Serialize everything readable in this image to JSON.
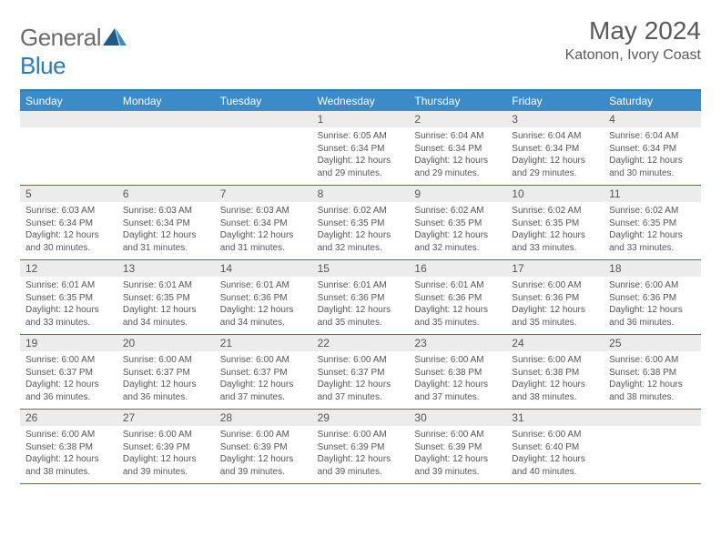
{
  "brand": {
    "part1": "General",
    "part2": "Blue"
  },
  "title": "May 2024",
  "location": "Katonon, Ivory Coast",
  "colors": {
    "header_bg": "#3b8bc8",
    "border": "#2a7ab8",
    "daynum_bg": "#ececec",
    "text": "#555555",
    "page_bg": "#ffffff"
  },
  "typography": {
    "title_fontsize": 28,
    "location_fontsize": 16,
    "weekday_fontsize": 12,
    "daynum_fontsize": 12,
    "body_fontsize": 10
  },
  "layout": {
    "columns": 7,
    "rows": 5,
    "first_weekday_index": 3
  },
  "weekdays": [
    "Sunday",
    "Monday",
    "Tuesday",
    "Wednesday",
    "Thursday",
    "Friday",
    "Saturday"
  ],
  "days": [
    {
      "n": 1,
      "sr": "6:05 AM",
      "ss": "6:34 PM",
      "dl": "12 hours and 29 minutes."
    },
    {
      "n": 2,
      "sr": "6:04 AM",
      "ss": "6:34 PM",
      "dl": "12 hours and 29 minutes."
    },
    {
      "n": 3,
      "sr": "6:04 AM",
      "ss": "6:34 PM",
      "dl": "12 hours and 29 minutes."
    },
    {
      "n": 4,
      "sr": "6:04 AM",
      "ss": "6:34 PM",
      "dl": "12 hours and 30 minutes."
    },
    {
      "n": 5,
      "sr": "6:03 AM",
      "ss": "6:34 PM",
      "dl": "12 hours and 30 minutes."
    },
    {
      "n": 6,
      "sr": "6:03 AM",
      "ss": "6:34 PM",
      "dl": "12 hours and 31 minutes."
    },
    {
      "n": 7,
      "sr": "6:03 AM",
      "ss": "6:34 PM",
      "dl": "12 hours and 31 minutes."
    },
    {
      "n": 8,
      "sr": "6:02 AM",
      "ss": "6:35 PM",
      "dl": "12 hours and 32 minutes."
    },
    {
      "n": 9,
      "sr": "6:02 AM",
      "ss": "6:35 PM",
      "dl": "12 hours and 32 minutes."
    },
    {
      "n": 10,
      "sr": "6:02 AM",
      "ss": "6:35 PM",
      "dl": "12 hours and 33 minutes."
    },
    {
      "n": 11,
      "sr": "6:02 AM",
      "ss": "6:35 PM",
      "dl": "12 hours and 33 minutes."
    },
    {
      "n": 12,
      "sr": "6:01 AM",
      "ss": "6:35 PM",
      "dl": "12 hours and 33 minutes."
    },
    {
      "n": 13,
      "sr": "6:01 AM",
      "ss": "6:35 PM",
      "dl": "12 hours and 34 minutes."
    },
    {
      "n": 14,
      "sr": "6:01 AM",
      "ss": "6:36 PM",
      "dl": "12 hours and 34 minutes."
    },
    {
      "n": 15,
      "sr": "6:01 AM",
      "ss": "6:36 PM",
      "dl": "12 hours and 35 minutes."
    },
    {
      "n": 16,
      "sr": "6:01 AM",
      "ss": "6:36 PM",
      "dl": "12 hours and 35 minutes."
    },
    {
      "n": 17,
      "sr": "6:00 AM",
      "ss": "6:36 PM",
      "dl": "12 hours and 35 minutes."
    },
    {
      "n": 18,
      "sr": "6:00 AM",
      "ss": "6:36 PM",
      "dl": "12 hours and 36 minutes."
    },
    {
      "n": 19,
      "sr": "6:00 AM",
      "ss": "6:37 PM",
      "dl": "12 hours and 36 minutes."
    },
    {
      "n": 20,
      "sr": "6:00 AM",
      "ss": "6:37 PM",
      "dl": "12 hours and 36 minutes."
    },
    {
      "n": 21,
      "sr": "6:00 AM",
      "ss": "6:37 PM",
      "dl": "12 hours and 37 minutes."
    },
    {
      "n": 22,
      "sr": "6:00 AM",
      "ss": "6:37 PM",
      "dl": "12 hours and 37 minutes."
    },
    {
      "n": 23,
      "sr": "6:00 AM",
      "ss": "6:38 PM",
      "dl": "12 hours and 37 minutes."
    },
    {
      "n": 24,
      "sr": "6:00 AM",
      "ss": "6:38 PM",
      "dl": "12 hours and 38 minutes."
    },
    {
      "n": 25,
      "sr": "6:00 AM",
      "ss": "6:38 PM",
      "dl": "12 hours and 38 minutes."
    },
    {
      "n": 26,
      "sr": "6:00 AM",
      "ss": "6:38 PM",
      "dl": "12 hours and 38 minutes."
    },
    {
      "n": 27,
      "sr": "6:00 AM",
      "ss": "6:39 PM",
      "dl": "12 hours and 39 minutes."
    },
    {
      "n": 28,
      "sr": "6:00 AM",
      "ss": "6:39 PM",
      "dl": "12 hours and 39 minutes."
    },
    {
      "n": 29,
      "sr": "6:00 AM",
      "ss": "6:39 PM",
      "dl": "12 hours and 39 minutes."
    },
    {
      "n": 30,
      "sr": "6:00 AM",
      "ss": "6:39 PM",
      "dl": "12 hours and 39 minutes."
    },
    {
      "n": 31,
      "sr": "6:00 AM",
      "ss": "6:40 PM",
      "dl": "12 hours and 40 minutes."
    }
  ],
  "labels": {
    "sunrise": "Sunrise:",
    "sunset": "Sunset:",
    "daylight": "Daylight:"
  }
}
